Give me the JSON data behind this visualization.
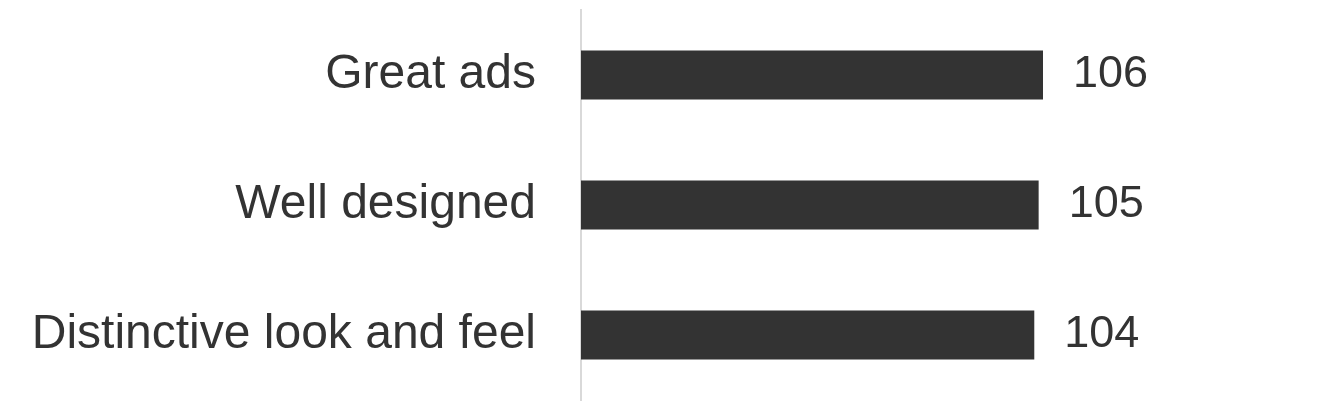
{
  "chart_data": {
    "type": "bar",
    "orientation": "horizontal",
    "categories": [
      "Great ads",
      "Well designed",
      "Distinctive look and feel"
    ],
    "values": [
      106,
      105,
      104
    ],
    "color": "#333333",
    "data_labels": true,
    "tick_labels": "y"
  }
}
